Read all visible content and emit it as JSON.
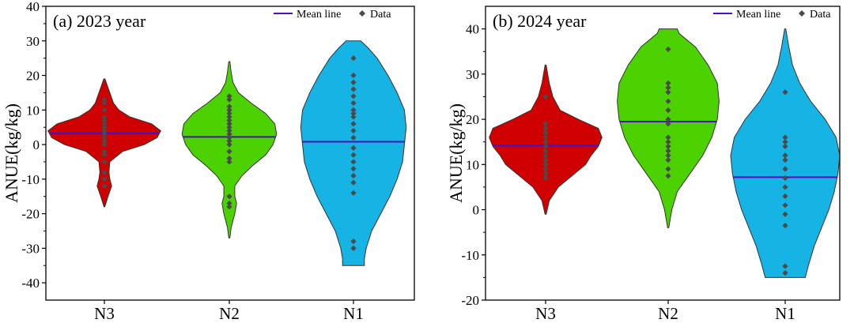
{
  "chart_data": [
    {
      "type": "violin",
      "title": "(a) 2023 year",
      "ylabel": "ANUE(kg/kg)",
      "xlabel": "",
      "ylim": [
        -45,
        40
      ],
      "yticks": [
        -40,
        -30,
        -20,
        -10,
        0,
        10,
        20,
        30,
        40
      ],
      "categories": [
        "N3",
        "N2",
        "N1"
      ],
      "legend": {
        "position": "top-right",
        "mean_label": "Mean line",
        "data_label": "Data"
      },
      "series": [
        {
          "name": "N3",
          "color": "#d10000",
          "mean": 3.2,
          "profile": [
            [
              -18,
              0.2
            ],
            [
              -15,
              2
            ],
            [
              -12,
              4
            ],
            [
              -10,
              3
            ],
            [
              -8,
              2.5
            ],
            [
              -5,
              3
            ],
            [
              -2,
              10
            ],
            [
              0,
              22
            ],
            [
              2,
              29
            ],
            [
              4,
              31
            ],
            [
              6,
              26
            ],
            [
              8,
              14
            ],
            [
              10,
              8
            ],
            [
              12,
              5
            ],
            [
              15,
              3
            ],
            [
              19,
              0.3
            ]
          ],
          "points": [
            -12,
            -10,
            -8,
            -5,
            -3,
            -2,
            0,
            1,
            2,
            3,
            4,
            5,
            6,
            7,
            8,
            10,
            12,
            13
          ]
        },
        {
          "name": "N2",
          "color": "#4cd200",
          "mean": 2.2,
          "profile": [
            [
              -27,
              0.3
            ],
            [
              -24,
              1
            ],
            [
              -20,
              3
            ],
            [
              -17,
              4
            ],
            [
              -15,
              3
            ],
            [
              -12,
              3
            ],
            [
              -9,
              7
            ],
            [
              -6,
              13
            ],
            [
              -3,
              20
            ],
            [
              0,
              24
            ],
            [
              3,
              26
            ],
            [
              6,
              25
            ],
            [
              9,
              20
            ],
            [
              12,
              12
            ],
            [
              15,
              5
            ],
            [
              18,
              2
            ],
            [
              21,
              1
            ],
            [
              24,
              0.3
            ]
          ],
          "points": [
            -18,
            -17,
            -15,
            -5,
            -4,
            -2,
            0,
            1,
            2,
            3,
            4,
            5,
            6,
            7,
            8,
            9,
            10,
            11,
            13,
            14
          ]
        },
        {
          "name": "N1",
          "color": "#16b4e5",
          "mean": 0.8,
          "profile": [
            [
              -35,
              6
            ],
            [
              -33,
              6
            ],
            [
              -30,
              7
            ],
            [
              -25,
              10
            ],
            [
              -20,
              15
            ],
            [
              -15,
              20
            ],
            [
              -10,
              24
            ],
            [
              -5,
              27
            ],
            [
              0,
              28
            ],
            [
              5,
              29
            ],
            [
              10,
              28
            ],
            [
              15,
              24
            ],
            [
              20,
              19
            ],
            [
              25,
              13
            ],
            [
              28,
              8
            ],
            [
              30,
              4
            ]
          ],
          "points": [
            -30,
            -28,
            -14,
            -11,
            -9,
            -7,
            -5,
            -3,
            -1,
            2,
            4,
            6,
            8,
            9,
            10,
            12,
            14,
            16,
            18,
            20,
            25
          ]
        }
      ]
    },
    {
      "type": "violin",
      "title": "(b) 2024 year",
      "ylabel": "ANUE(kg/kg)",
      "xlabel": "",
      "ylim": [
        -20,
        45
      ],
      "yticks": [
        -20,
        -10,
        0,
        10,
        20,
        30,
        40
      ],
      "categories": [
        "N3",
        "N2",
        "N1"
      ],
      "legend": {
        "position": "top-right",
        "mean_label": "Mean line",
        "data_label": "Data"
      },
      "series": [
        {
          "name": "N3",
          "color": "#d10000",
          "mean": 14.2,
          "profile": [
            [
              -1,
              0.3
            ],
            [
              2,
              2
            ],
            [
              5,
              7
            ],
            [
              8,
              16
            ],
            [
              10,
              22
            ],
            [
              12,
              25
            ],
            [
              14,
              29
            ],
            [
              16,
              31
            ],
            [
              18,
              29
            ],
            [
              20,
              18
            ],
            [
              22,
              8
            ],
            [
              25,
              4
            ],
            [
              28,
              2
            ],
            [
              32,
              0.3
            ]
          ],
          "points": [
            7,
            8,
            9,
            10,
            11,
            12,
            13,
            14,
            15,
            16,
            17,
            18,
            19,
            25
          ]
        },
        {
          "name": "N2",
          "color": "#4cd200",
          "mean": 19.5,
          "profile": [
            [
              -4,
              0.3
            ],
            [
              0,
              2
            ],
            [
              4,
              5
            ],
            [
              8,
              12
            ],
            [
              12,
              19
            ],
            [
              16,
              24
            ],
            [
              20,
              27
            ],
            [
              24,
              28
            ],
            [
              28,
              27
            ],
            [
              32,
              22
            ],
            [
              36,
              15
            ],
            [
              39,
              6
            ],
            [
              40,
              5
            ]
          ],
          "points": [
            7.5,
            9,
            11,
            12,
            13,
            14,
            15,
            16,
            19,
            20,
            22,
            24,
            26,
            27,
            28,
            35.5
          ]
        },
        {
          "name": "N1",
          "color": "#16b4e5",
          "mean": 7.2,
          "profile": [
            [
              -15,
              11
            ],
            [
              -12,
              13
            ],
            [
              -8,
              16
            ],
            [
              -4,
              20
            ],
            [
              0,
              24
            ],
            [
              4,
              27
            ],
            [
              8,
              29
            ],
            [
              12,
              30
            ],
            [
              16,
              28
            ],
            [
              20,
              22
            ],
            [
              24,
              14
            ],
            [
              28,
              8
            ],
            [
              32,
              4
            ],
            [
              36,
              2
            ],
            [
              40,
              0.3
            ]
          ],
          "points": [
            -14,
            -12.5,
            -3.5,
            -1,
            1,
            3,
            5,
            7,
            9,
            11,
            12,
            14,
            15,
            16,
            26
          ]
        }
      ]
    }
  ]
}
